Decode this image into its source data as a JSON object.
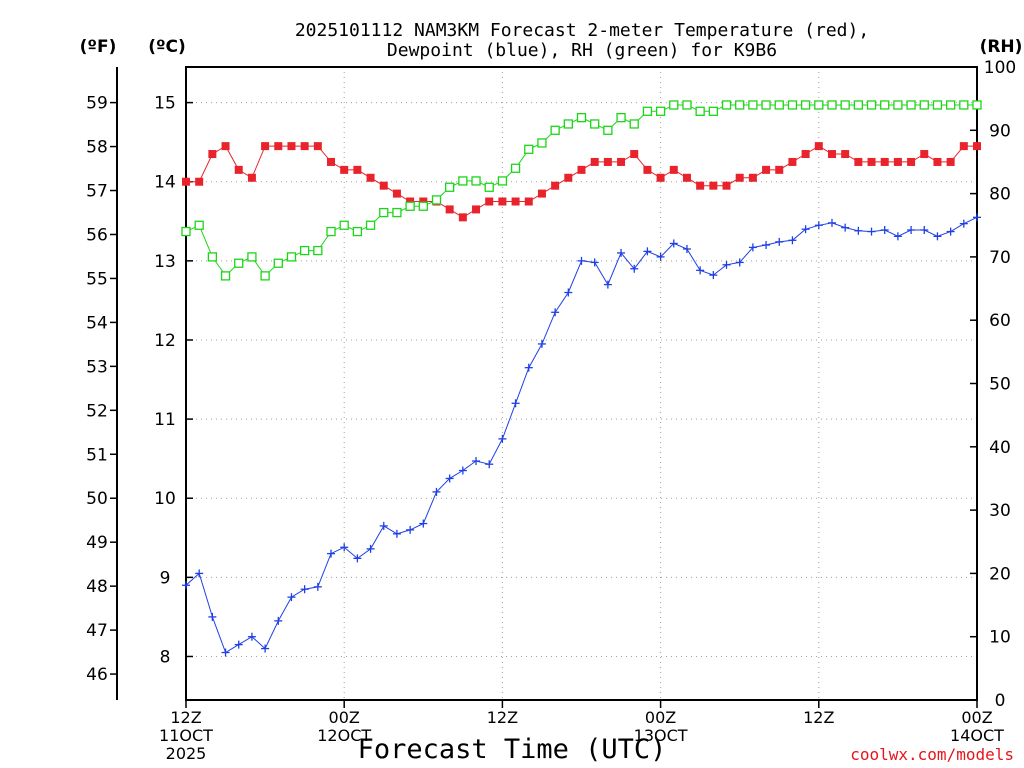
{
  "chart_data": {
    "type": "line",
    "title_line1": "2025101112 NAM3KM Forecast 2-meter Temperature (red),",
    "title_line2": "Dewpoint (blue), RH (green) for K9B6",
    "xlabel": "Forecast Time (UTC)",
    "credit": "coolwx.com/models",
    "unit_f": "(ºF)",
    "unit_c": "(ºC)",
    "unit_rh": "(RH)",
    "x_forecast_hours_range": [
      0,
      60
    ],
    "ylim_c": [
      7.45,
      15.45
    ],
    "ylim_rh": [
      0,
      100
    ],
    "x_ticks": [
      {
        "hour": 0,
        "lines": [
          "12Z",
          "11OCT",
          "2025"
        ]
      },
      {
        "hour": 12,
        "lines": [
          "00Z",
          "12OCT"
        ]
      },
      {
        "hour": 24,
        "lines": [
          "12Z"
        ]
      },
      {
        "hour": 36,
        "lines": [
          "00Z",
          "13OCT"
        ]
      },
      {
        "hour": 48,
        "lines": [
          "12Z"
        ]
      },
      {
        "hour": 60,
        "lines": [
          "00Z",
          "14OCT"
        ]
      }
    ],
    "yticks_c": [
      "8",
      "9",
      "10",
      "11",
      "12",
      "13",
      "14",
      "15"
    ],
    "yticks_f": [
      "46",
      "47",
      "48",
      "49",
      "50",
      "51",
      "52",
      "53",
      "54",
      "55",
      "56",
      "57",
      "58",
      "59"
    ],
    "yticks_rh": [
      "0",
      "10",
      "20",
      "30",
      "40",
      "50",
      "60",
      "70",
      "80",
      "90",
      "100"
    ],
    "series": [
      {
        "name": "2-meter Temperature",
        "axis": "celsius",
        "color": "#e8232b",
        "marker": "filled-square",
        "values": [
          14.0,
          14.0,
          14.35,
          14.45,
          14.15,
          14.05,
          14.45,
          14.45,
          14.45,
          14.45,
          14.45,
          14.25,
          14.15,
          14.15,
          14.05,
          13.95,
          13.85,
          13.75,
          13.75,
          13.75,
          13.65,
          13.55,
          13.65,
          13.75,
          13.75,
          13.75,
          13.75,
          13.85,
          13.95,
          14.05,
          14.15,
          14.25,
          14.25,
          14.25,
          14.35,
          14.15,
          14.05,
          14.15,
          14.05,
          13.95,
          13.95,
          13.95,
          14.05,
          14.05,
          14.15,
          14.15,
          14.25,
          14.35,
          14.45,
          14.35,
          14.35,
          14.25,
          14.25,
          14.25,
          14.25,
          14.25,
          14.35,
          14.25,
          14.25,
          14.45,
          14.45
        ]
      },
      {
        "name": "Dewpoint",
        "axis": "celsius",
        "color": "#1f3fe6",
        "marker": "plus",
        "values": [
          8.9,
          9.05,
          8.5,
          8.05,
          8.15,
          8.25,
          8.1,
          8.45,
          8.75,
          8.85,
          8.88,
          9.3,
          9.38,
          9.24,
          9.36,
          9.65,
          9.55,
          9.6,
          9.68,
          10.08,
          10.25,
          10.35,
          10.47,
          10.43,
          10.75,
          11.2,
          11.65,
          11.95,
          12.35,
          12.6,
          13.0,
          12.98,
          12.7,
          13.1,
          12.9,
          13.12,
          13.05,
          13.22,
          13.15,
          12.88,
          12.82,
          12.95,
          12.98,
          13.17,
          13.2,
          13.24,
          13.26,
          13.4,
          13.45,
          13.48,
          13.42,
          13.38,
          13.37,
          13.39,
          13.31,
          13.39,
          13.39,
          13.31,
          13.37,
          13.47,
          13.55
        ]
      },
      {
        "name": "RH",
        "axis": "rh",
        "color": "#1bd617",
        "marker": "open-square",
        "values": [
          74,
          75,
          70,
          67,
          69,
          70,
          67,
          69,
          70,
          71,
          71,
          74,
          75,
          74,
          75,
          77,
          77,
          78,
          78,
          79,
          81,
          82,
          82,
          81,
          82,
          84,
          87,
          88,
          90,
          91,
          92,
          91,
          90,
          92,
          91,
          93,
          93,
          94,
          94,
          93,
          93,
          94,
          94,
          94,
          94,
          94,
          94,
          94,
          94,
          94,
          94,
          94,
          94,
          94,
          94,
          94,
          94,
          94,
          94,
          94,
          94
        ]
      }
    ]
  }
}
